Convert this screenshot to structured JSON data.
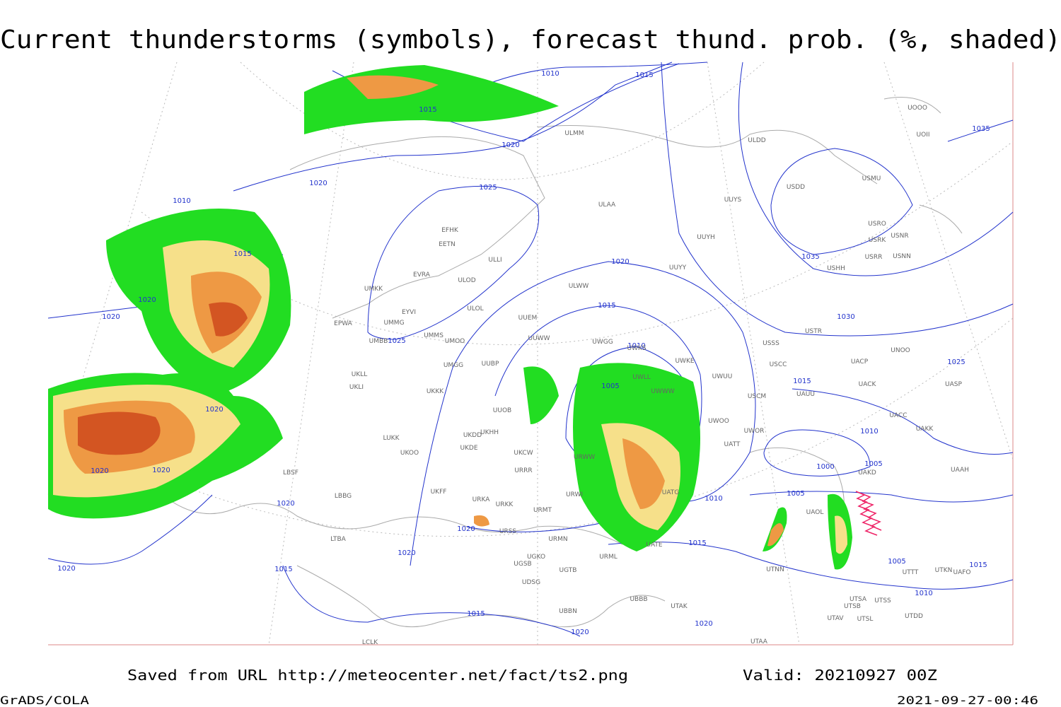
{
  "title": "Current thunderstorms (symbols), forecast thund. prob. (%, shaded)",
  "footer": {
    "saved": "Saved from URL http://meteocenter.net/fact/ts2.png",
    "valid": "Valid: 20210927 00Z",
    "software": "GrADS/COLA",
    "timestamp": "2021-09-27-00:46"
  },
  "isobar_labels": [
    1010,
    1015,
    1015,
    1020,
    1020,
    1025,
    1010,
    1015,
    1020,
    1020,
    1020,
    1015,
    1025,
    1010,
    1030,
    1035,
    1035,
    1025,
    1015,
    1005,
    1020,
    1010,
    1000,
    1005,
    1020,
    1020,
    1005,
    1010,
    1020,
    1020,
    1015,
    1020,
    1005,
    1020,
    1015,
    1015,
    1010,
    1015,
    1020,
    1020
  ],
  "stations": [
    "ULMM",
    "ULDD",
    "UOOO",
    "UOII",
    "USDD",
    "USMU",
    "UUYS",
    "ULAA",
    "EFHK",
    "EETN",
    "UUYH",
    "USRO",
    "USRK",
    "USNR",
    "USRR",
    "USNN",
    "USHH",
    "ULLI",
    "UUYY",
    "EVRA",
    "ULOD",
    "UMKK",
    "ULWW",
    "ULOL",
    "EYVI",
    "UUEM",
    "UMMG",
    "EPWA",
    "UMMS",
    "UMOO",
    "UUWW",
    "UWGG",
    "UWKS",
    "USSS",
    "USTR",
    "UNOO",
    "UMBB",
    "UKLL",
    "UKLI",
    "UMGG",
    "UUBP",
    "UWKE",
    "UWUU",
    "USCC",
    "UACP",
    "UACK",
    "UASP",
    "UKKK",
    "UWLL",
    "UWWW",
    "USCM",
    "UAUU",
    "UUOB",
    "UWOO",
    "UWOR",
    "UACC",
    "UAKK",
    "LUKK",
    "UKHH",
    "UKDD",
    "UKOO",
    "UKCW",
    "UKDE",
    "UATT",
    "URWW",
    "UAKD",
    "UAAH",
    "LBSF",
    "URRR",
    "UKFF",
    "UATG",
    "URKA",
    "URKK",
    "URWI",
    "UAOL",
    "LBBG",
    "URMT",
    "URSS",
    "URMN",
    "UATE",
    "LTBA",
    "UGKO",
    "URML",
    "UTNN",
    "UGSB",
    "UGTB",
    "UTTT",
    "UTKN",
    "UAFO",
    "UDSG",
    "UBBN",
    "UBBB",
    "UTAK",
    "UTSA",
    "UTSS",
    "UTSB",
    "UTAV",
    "UTSL",
    "UTDD",
    "LCLK",
    "UTAA"
  ]
}
